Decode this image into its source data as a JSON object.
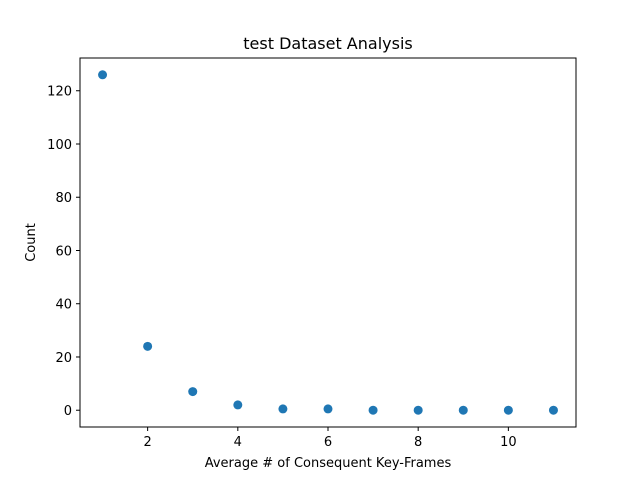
{
  "chart_data": {
    "type": "scatter",
    "title": "test Dataset Analysis",
    "xlabel": "Average # of Consequent Key-Frames",
    "ylabel": "Count",
    "xlim": [
      0.5,
      11.5
    ],
    "ylim": [
      -6.3,
      132.3
    ],
    "xticks": [
      2,
      4,
      6,
      8,
      10
    ],
    "yticks": [
      0,
      20,
      40,
      60,
      80,
      100,
      120
    ],
    "grid": false,
    "series": [
      {
        "color": "#1f77b4",
        "x": [
          1,
          2,
          3,
          4,
          5,
          6,
          7,
          8,
          9,
          10,
          11
        ],
        "y": [
          126,
          24,
          7,
          2,
          0.5,
          0.5,
          0,
          0,
          0,
          0,
          0
        ]
      }
    ]
  }
}
